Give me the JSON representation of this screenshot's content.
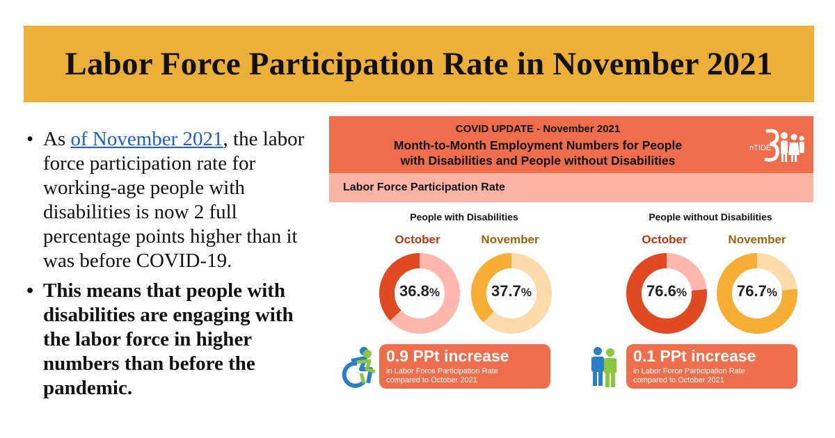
{
  "banner": {
    "title": "Labor Force Participation Rate in November 2021"
  },
  "bullets": {
    "b1_prefix": "As ",
    "b1_link": "of November 2021",
    "b1_suffix": ", the labor force participation rate for working-age people with disabilities is now 2 full percentage points higher than it was before COVID-19.",
    "b2": "This means that people with disabilities are engaging with the labor force in higher numbers than before the pandemic.",
    "marker": "•"
  },
  "card": {
    "line1": "COVID UPDATE - November 2021",
    "line2": "Month-to-Month Employment Numbers for People",
    "line3": "with Disabilities and People without Disabilities",
    "logo_text": "nTIDE",
    "subtitle": "Labor Force Participation Rate"
  },
  "colors": {
    "banner": "#ecaf37",
    "header": "#ee6e4b",
    "subbar": "#fbb4a3",
    "october_fill": "#e04a22",
    "october_track": "#fdb7ad",
    "november_fill": "#f6ae35",
    "november_track": "#fddbab",
    "october_text": "#b53a14",
    "november_text": "#9a6512"
  },
  "chart_data": [
    {
      "type": "pie",
      "title": "People with Disabilities",
      "categories": [
        "October",
        "November"
      ],
      "values": [
        36.8,
        37.7
      ],
      "unit": "%",
      "change_headline": "0.9 PPt increase",
      "change_detail_1": "in Labor Force Participation Rate",
      "change_detail_2": "compared to October 2021"
    },
    {
      "type": "pie",
      "title": "People without Disabilities",
      "categories": [
        "October",
        "November"
      ],
      "values": [
        76.6,
        76.7
      ],
      "unit": "%",
      "change_headline": "0.1 PPt increase",
      "change_detail_1": "in Labor Force Participation Rate",
      "change_detail_2": "compared to October 2021"
    }
  ]
}
